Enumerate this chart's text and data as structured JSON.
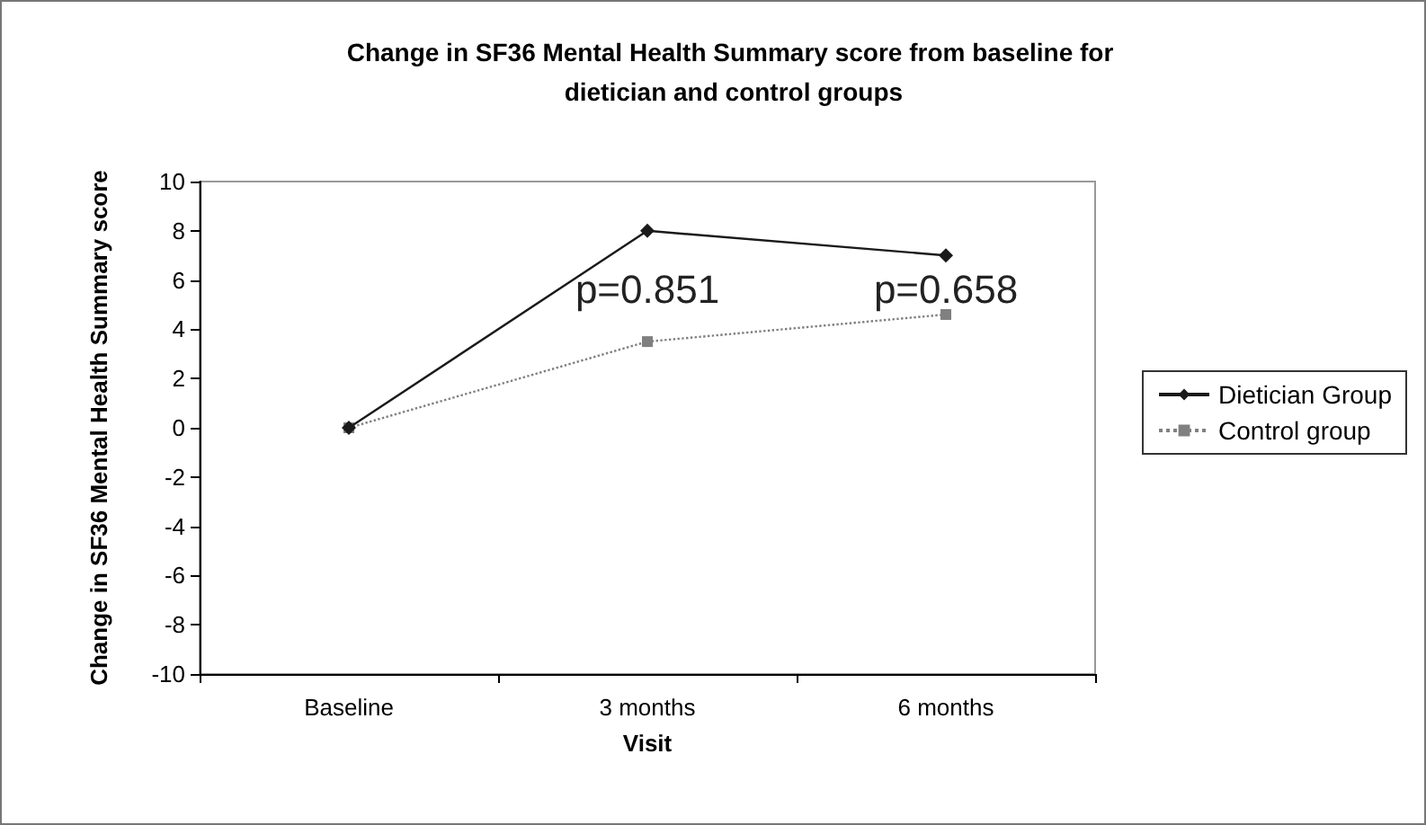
{
  "chart_data": {
    "type": "line",
    "title": "Change in SF36 Mental Health Summary score from baseline for dietician and control groups",
    "xlabel": "Visit",
    "ylabel": "Change in SF36 Mental Health Summary score",
    "categories": [
      "Baseline",
      "3 months",
      "6 months"
    ],
    "series": [
      {
        "name": "Dietician Group",
        "color": "#1a1a1a",
        "values": [
          0,
          8.0,
          7.0
        ],
        "marker": "diamond",
        "line_style": "solid"
      },
      {
        "name": "Control group",
        "color": "#808080",
        "values": [
          0,
          3.5,
          4.6
        ],
        "marker": "square",
        "line_style": "dotted"
      }
    ],
    "ylim": [
      -10,
      10
    ],
    "yticks": [
      -10,
      -8,
      -6,
      -4,
      -2,
      0,
      2,
      4,
      6,
      8,
      10
    ],
    "annotations": [
      "p=0.851",
      "p=0.658"
    ],
    "grid": false,
    "legend": "right"
  }
}
